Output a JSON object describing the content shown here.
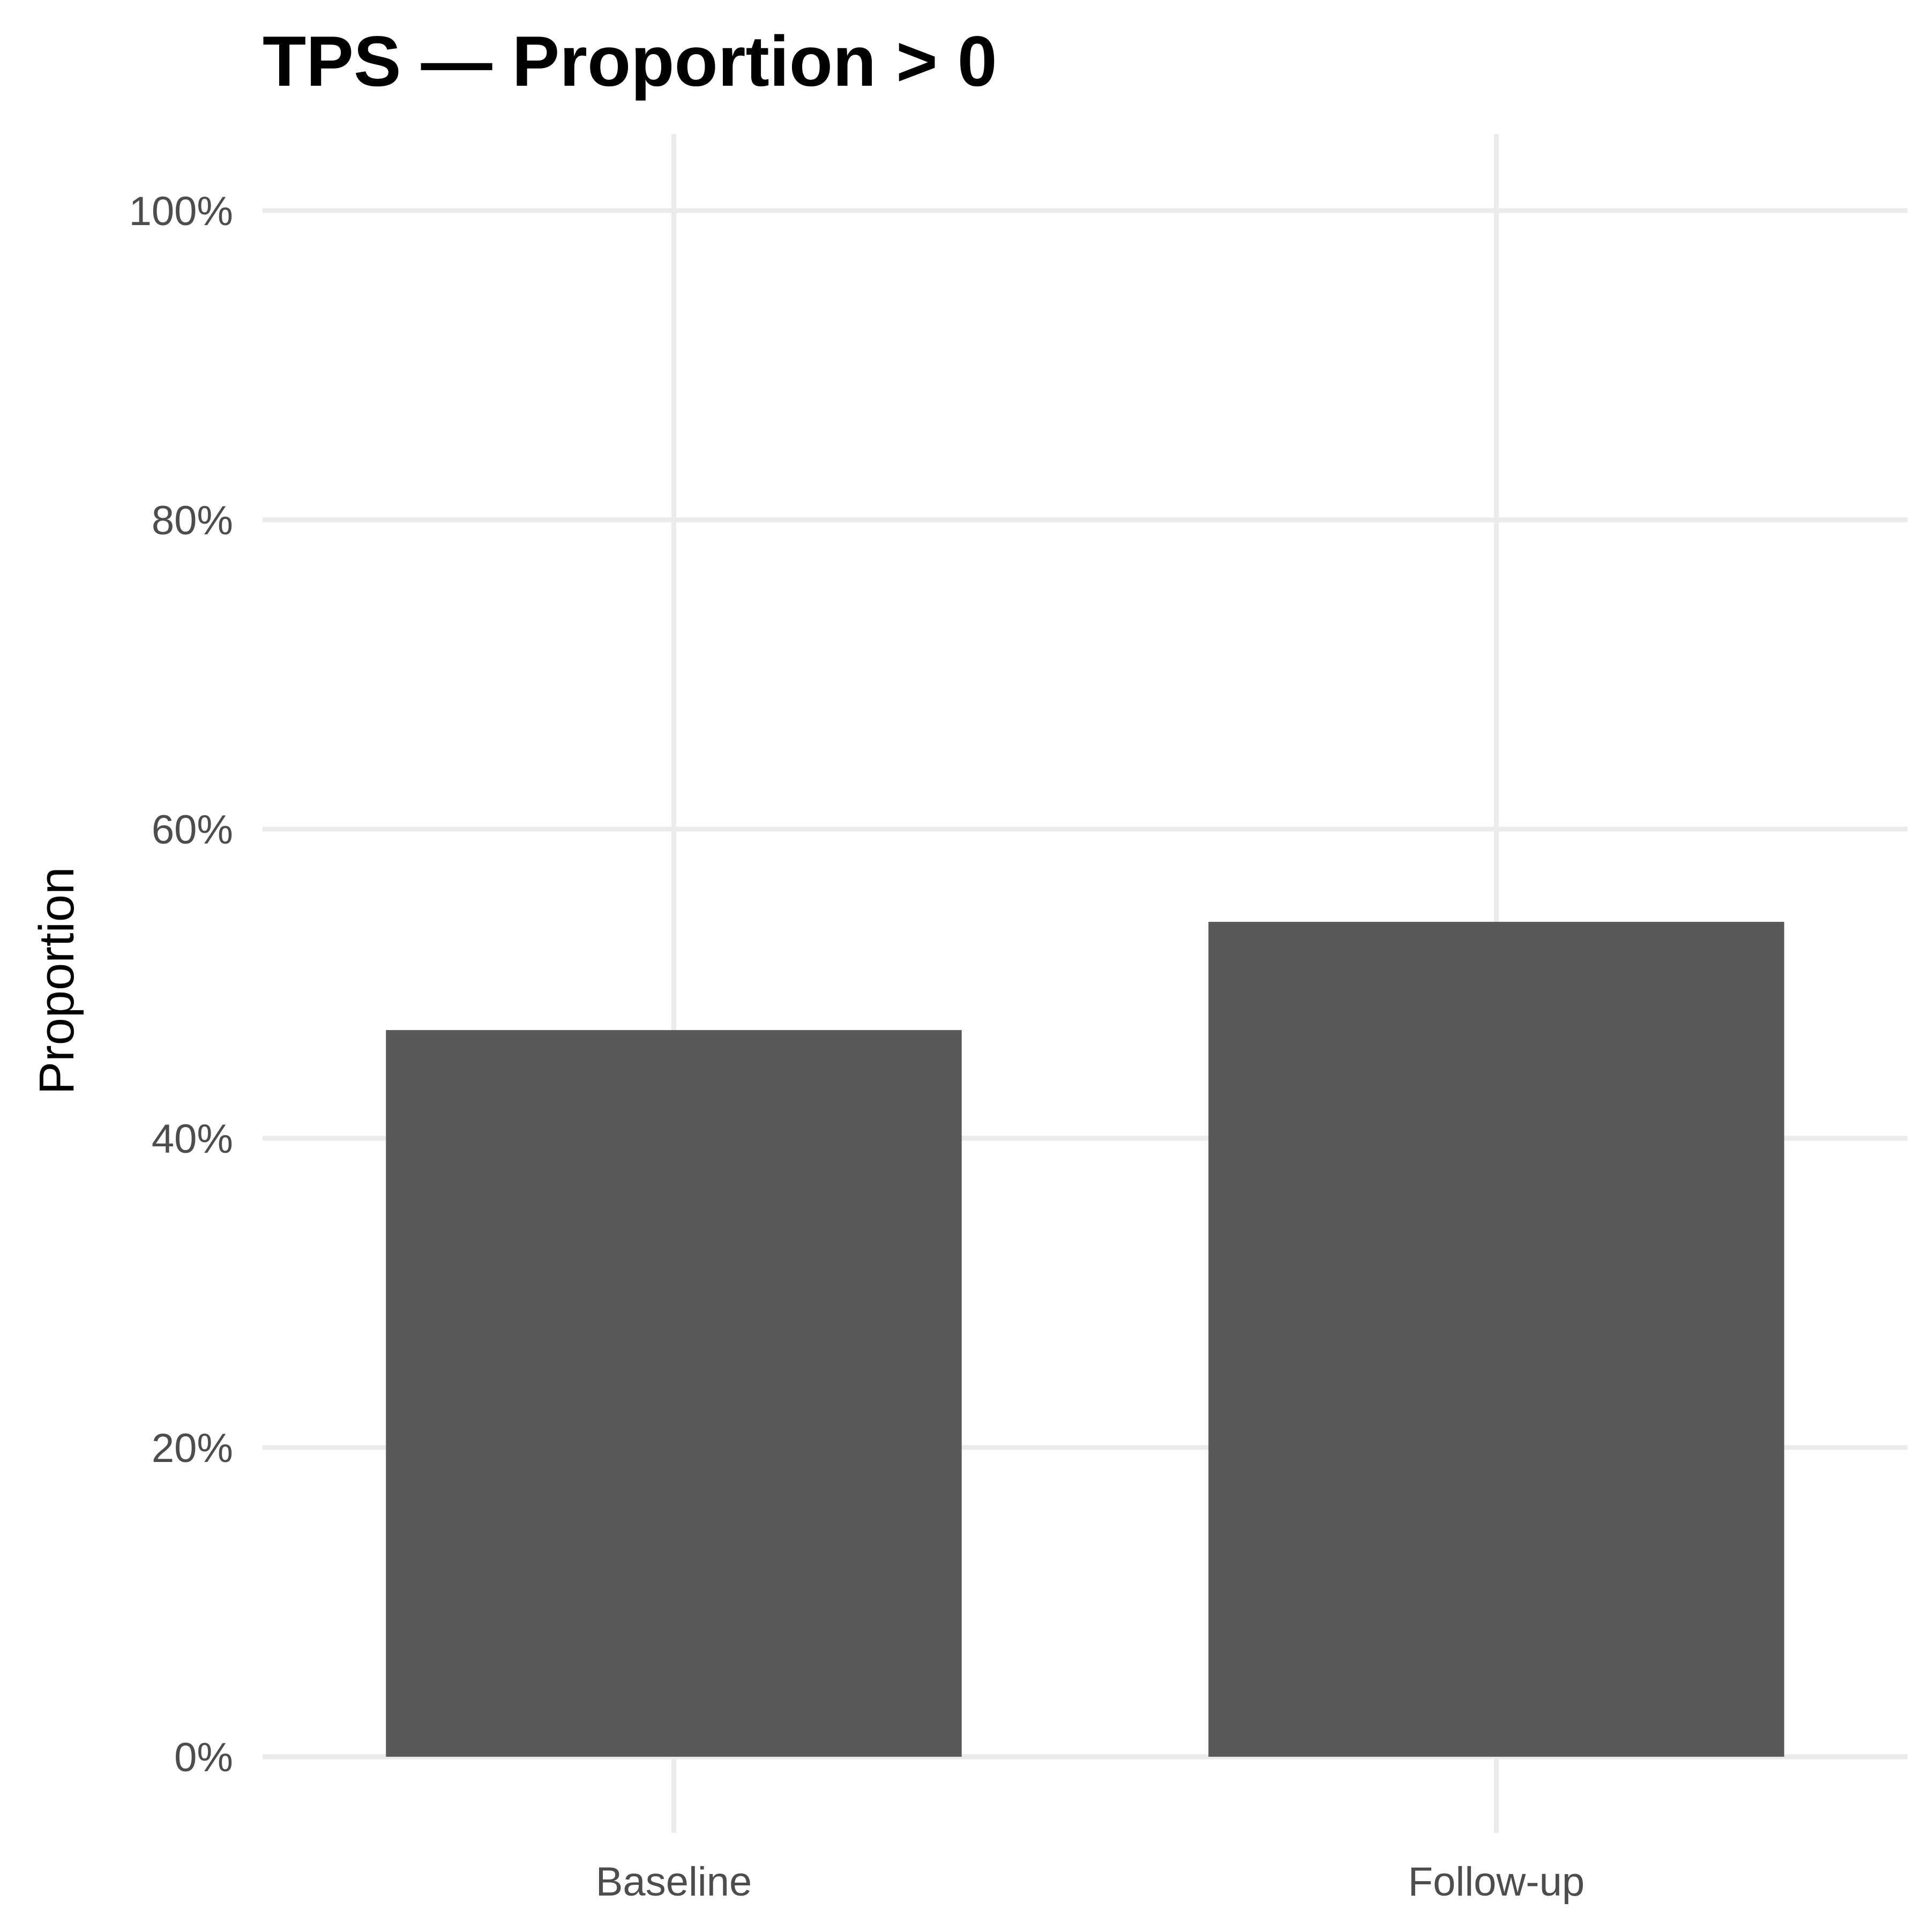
{
  "chart_data": {
    "type": "bar",
    "title": "TPS — Proportion > 0",
    "xlabel": "",
    "ylabel": "Proportion",
    "categories": [
      "Baseline",
      "Follow-up"
    ],
    "values": [
      0.47,
      0.54
    ],
    "ylim": [
      0,
      1
    ],
    "y_ticks": [
      0,
      0.2,
      0.4,
      0.6,
      0.8,
      1.0
    ],
    "y_tick_labels": [
      "0%",
      "20%",
      "40%",
      "60%",
      "80%",
      "100%"
    ],
    "grid": true,
    "legend": "none",
    "bar_color": "#595959",
    "grid_color": "#ebebeb"
  }
}
